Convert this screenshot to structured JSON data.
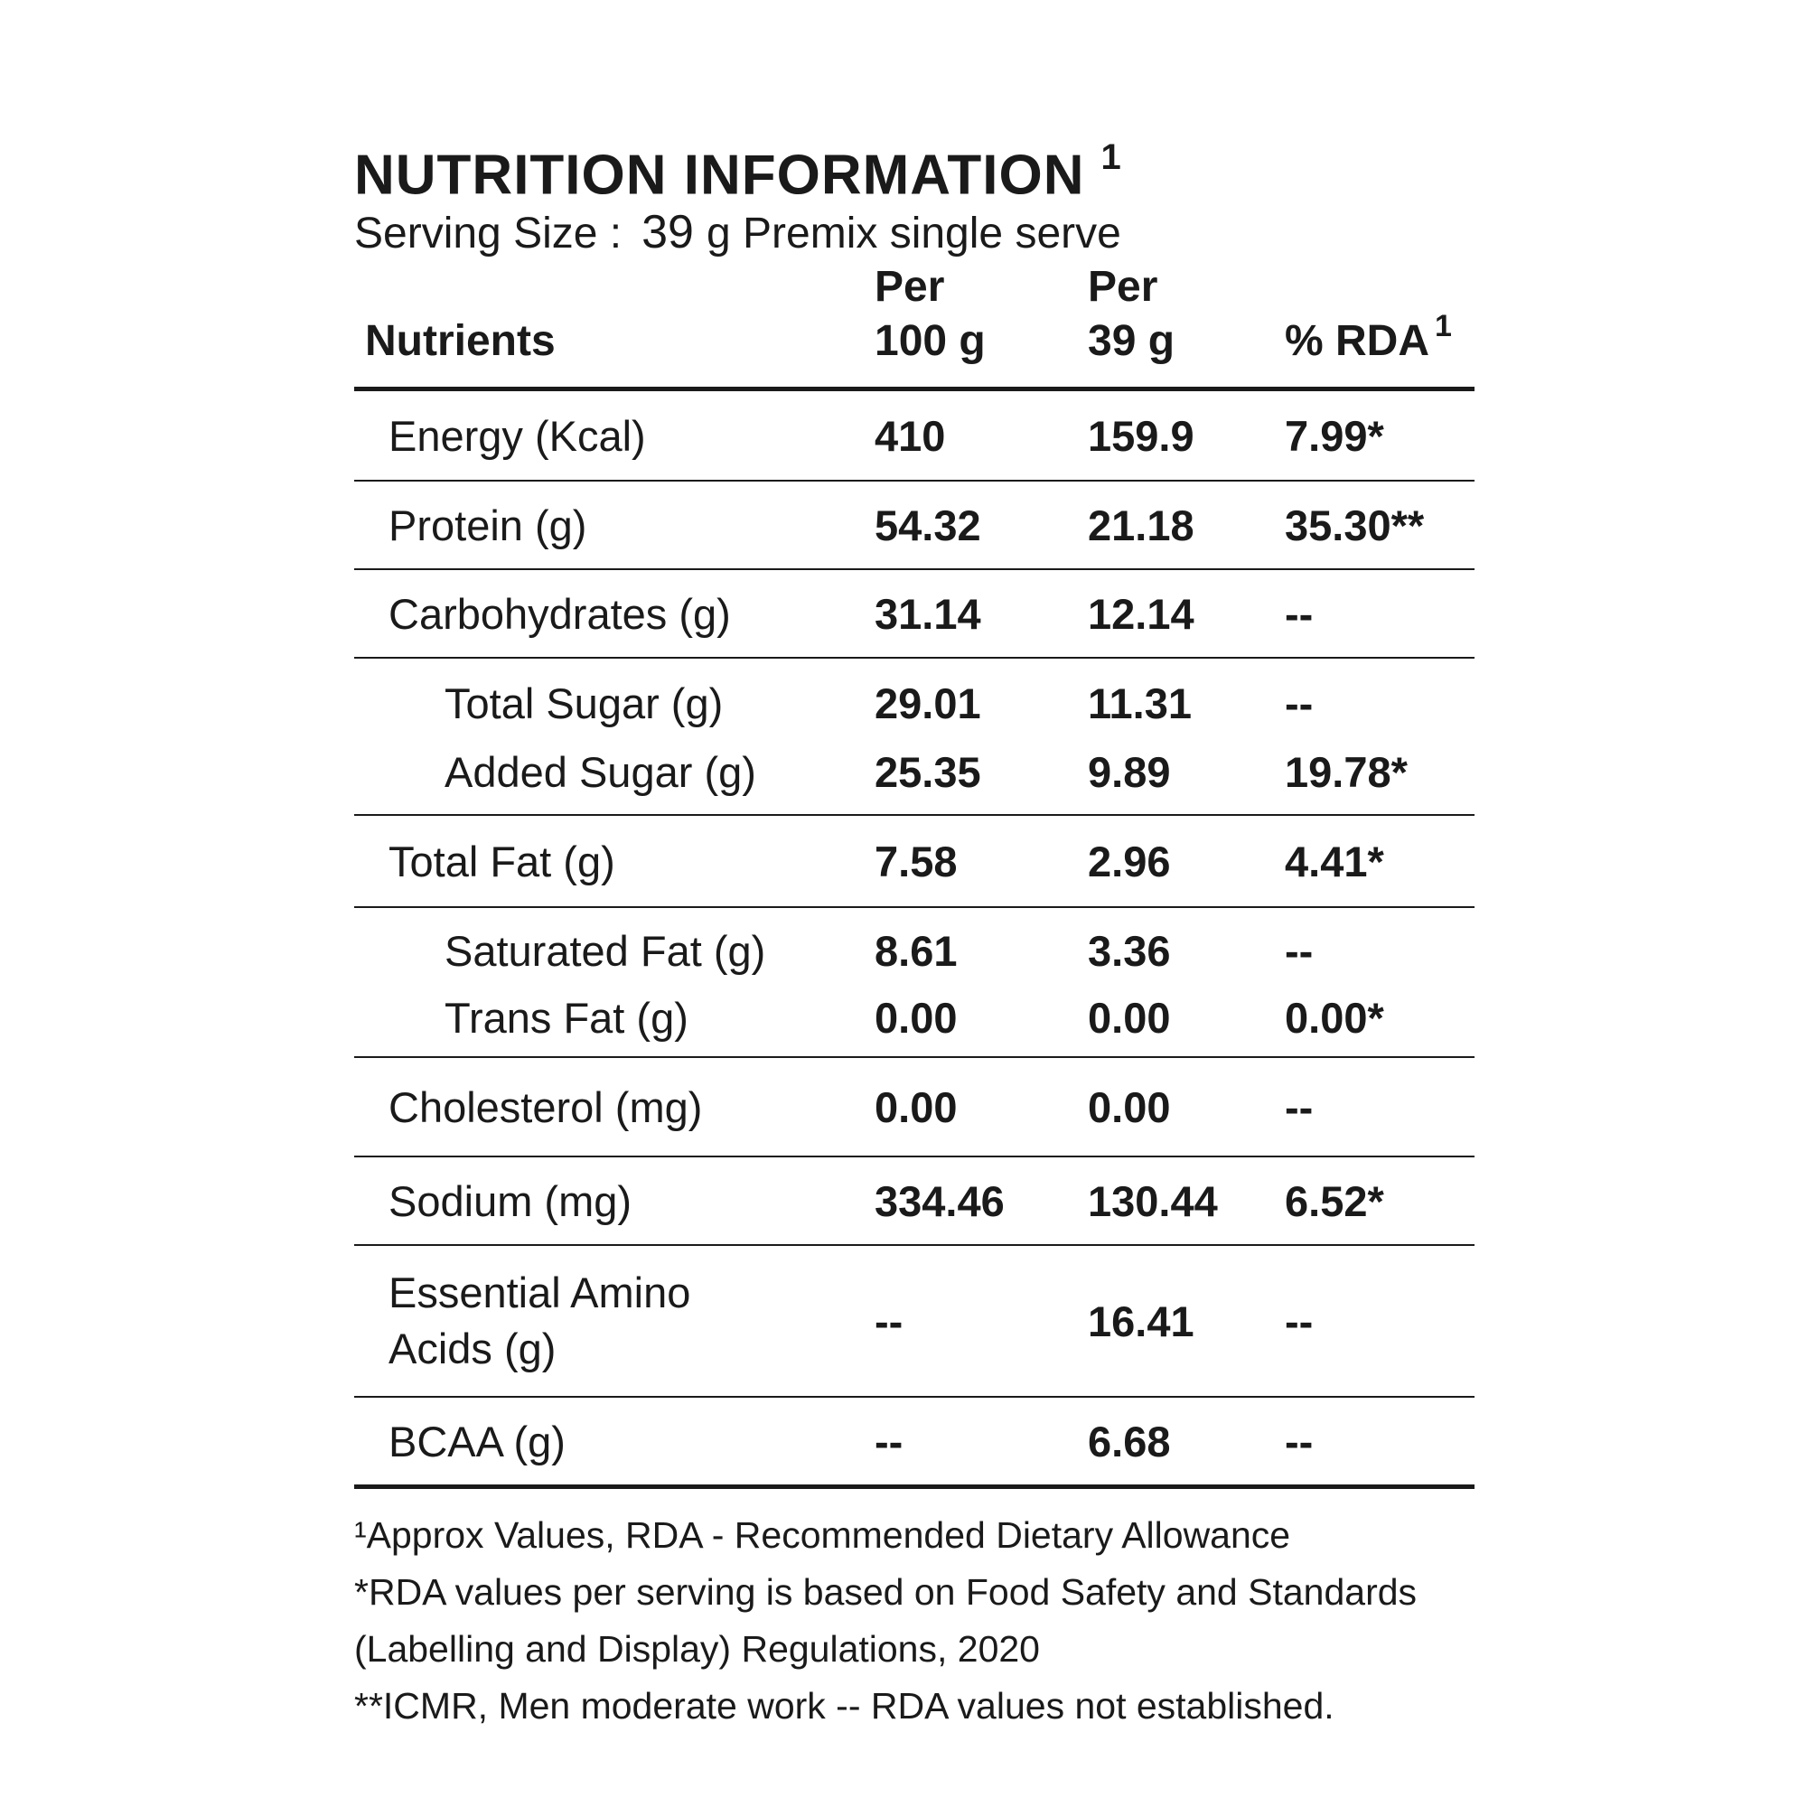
{
  "title": "NUTRITION INFORMATION",
  "title_mark": "1",
  "serving": {
    "label": "Serving Size :",
    "amount": "39",
    "unit": "g Premix single serve"
  },
  "headers": {
    "nutrients": "Nutrients",
    "per100_line1": "Per",
    "per100_line2": "100 g",
    "per39_line1": "Per",
    "per39_line2": "39 g",
    "rda": "% RDA",
    "rda_mark": "1"
  },
  "rows": [
    {
      "name": "Energy (Kcal)",
      "per100": "410",
      "per39": "159.9",
      "rda": "7.99*"
    },
    {
      "name": "Protein (g)",
      "per100": "54.32",
      "per39": "21.18",
      "rda": "35.30**"
    },
    {
      "name": "Carbohydrates (g)",
      "per100": "31.14",
      "per39": "12.14",
      "rda": "--"
    },
    {
      "name": "Total Sugar (g)",
      "per100": "29.01",
      "per39": "11.31",
      "rda": "--"
    },
    {
      "name": "Added Sugar (g)",
      "per100": "25.35",
      "per39": "9.89",
      "rda": "19.78*"
    },
    {
      "name": "Total Fat (g)",
      "per100": "7.58",
      "per39": "2.96",
      "rda": "4.41*"
    },
    {
      "name": "Saturated Fat (g)",
      "per100": "8.61",
      "per39": "3.36",
      "rda": "--"
    },
    {
      "name": "Trans Fat (g)",
      "per100": "0.00",
      "per39": "0.00",
      "rda": "0.00*"
    },
    {
      "name": "Cholesterol (mg)",
      "per100": "0.00",
      "per39": "0.00",
      "rda": "--"
    },
    {
      "name": "Sodium (mg)",
      "per100": "334.46",
      "per39": "130.44",
      "rda": "6.52*"
    },
    {
      "name_line1": "Essential Amino",
      "name_line2": "Acids (g)",
      "per100": "--",
      "per39": "16.41",
      "rda": "--"
    },
    {
      "name": "BCAA (g)",
      "per100": "--",
      "per39": "6.68",
      "rda": "--"
    }
  ],
  "footnotes": [
    "¹Approx Values, RDA - Recommended Dietary Allowance",
    "*RDA values per serving is based on Food Safety and Standards",
    "(Labelling and Display) Regulations, 2020",
    "**ICMR, Men moderate work -- RDA values not established."
  ]
}
